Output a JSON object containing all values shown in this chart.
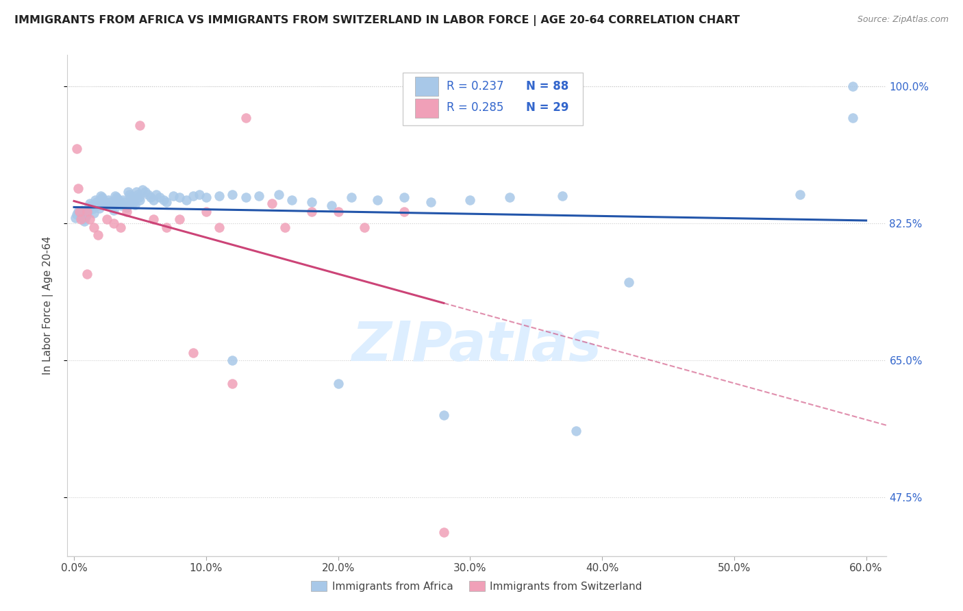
{
  "title": "IMMIGRANTS FROM AFRICA VS IMMIGRANTS FROM SWITZERLAND IN LABOR FORCE | AGE 20-64 CORRELATION CHART",
  "source": "Source: ZipAtlas.com",
  "ylabel": "In Labor Force | Age 20-64",
  "africa_R": 0.237,
  "africa_N": 88,
  "swiss_R": 0.285,
  "swiss_N": 29,
  "africa_color": "#a8c8e8",
  "swiss_color": "#f0a0b8",
  "africa_line_color": "#2255aa",
  "swiss_line_color": "#cc4477",
  "watermark_color": "#ddeeff",
  "xlim": [
    0.0,
    0.6
  ],
  "ylim": [
    0.4,
    1.04
  ],
  "x_ticks": [
    0.0,
    0.1,
    0.2,
    0.3,
    0.4,
    0.5,
    0.6
  ],
  "y_ticks": [
    0.475,
    0.65,
    0.825,
    1.0
  ],
  "africa_x": [
    0.001,
    0.002,
    0.003,
    0.004,
    0.005,
    0.006,
    0.007,
    0.008,
    0.009,
    0.01,
    0.011,
    0.012,
    0.013,
    0.014,
    0.015,
    0.016,
    0.017,
    0.018,
    0.019,
    0.02,
    0.021,
    0.022,
    0.023,
    0.024,
    0.025,
    0.026,
    0.027,
    0.028,
    0.029,
    0.03,
    0.031,
    0.032,
    0.033,
    0.034,
    0.035,
    0.036,
    0.037,
    0.038,
    0.039,
    0.04,
    0.041,
    0.042,
    0.043,
    0.044,
    0.045,
    0.046,
    0.047,
    0.048,
    0.049,
    0.05,
    0.052,
    0.054,
    0.056,
    0.058,
    0.06,
    0.062,
    0.065,
    0.068,
    0.07,
    0.075,
    0.08,
    0.085,
    0.09,
    0.095,
    0.1,
    0.11,
    0.12,
    0.13,
    0.14,
    0.155,
    0.165,
    0.18,
    0.195,
    0.21,
    0.23,
    0.25,
    0.27,
    0.3,
    0.33,
    0.37,
    0.12,
    0.2,
    0.28,
    0.38,
    0.42,
    0.55,
    0.59,
    0.59
  ],
  "africa_y": [
    0.832,
    0.836,
    0.84,
    0.838,
    0.835,
    0.842,
    0.83,
    0.828,
    0.833,
    0.837,
    0.845,
    0.85,
    0.848,
    0.843,
    0.838,
    0.855,
    0.852,
    0.848,
    0.844,
    0.86,
    0.858,
    0.856,
    0.853,
    0.85,
    0.848,
    0.855,
    0.852,
    0.848,
    0.845,
    0.842,
    0.86,
    0.858,
    0.856,
    0.853,
    0.85,
    0.848,
    0.855,
    0.852,
    0.848,
    0.845,
    0.865,
    0.862,
    0.858,
    0.855,
    0.852,
    0.849,
    0.865,
    0.862,
    0.858,
    0.855,
    0.868,
    0.865,
    0.862,
    0.858,
    0.855,
    0.862,
    0.858,
    0.855,
    0.852,
    0.86,
    0.858,
    0.855,
    0.86,
    0.862,
    0.858,
    0.86,
    0.862,
    0.858,
    0.86,
    0.862,
    0.855,
    0.852,
    0.848,
    0.858,
    0.855,
    0.858,
    0.852,
    0.855,
    0.858,
    0.86,
    0.65,
    0.62,
    0.58,
    0.56,
    0.75,
    0.862,
    0.96,
    1.0
  ],
  "swiss_x": [
    0.002,
    0.003,
    0.004,
    0.005,
    0.01,
    0.012,
    0.015,
    0.018,
    0.025,
    0.03,
    0.035,
    0.04,
    0.05,
    0.06,
    0.07,
    0.08,
    0.09,
    0.1,
    0.11,
    0.12,
    0.13,
    0.15,
    0.16,
    0.18,
    0.2,
    0.22,
    0.25,
    0.28,
    0.01
  ],
  "swiss_y": [
    0.92,
    0.87,
    0.84,
    0.83,
    0.84,
    0.83,
    0.82,
    0.81,
    0.83,
    0.825,
    0.82,
    0.84,
    0.95,
    0.83,
    0.82,
    0.83,
    0.66,
    0.84,
    0.82,
    0.62,
    0.96,
    0.85,
    0.82,
    0.84,
    0.84,
    0.82,
    0.84,
    0.43,
    0.76
  ]
}
